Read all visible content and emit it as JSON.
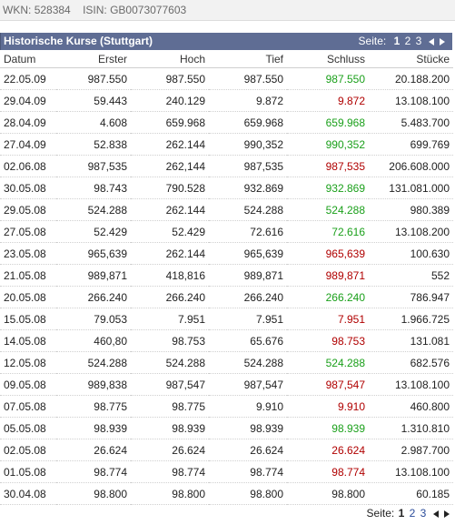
{
  "header": {
    "wkn_label": "WKN:",
    "wkn_value": "528384",
    "isin_label": "ISIN:",
    "isin_value": "GB0073077603"
  },
  "panel": {
    "title": "Historische Kurse (Stuttgart)",
    "pager_label": "Seite:",
    "pages": [
      "1",
      "2",
      "3"
    ],
    "current_page": "1"
  },
  "columns": [
    "Datum",
    "Erster",
    "Hoch",
    "Tief",
    "Schluss",
    "Stücke"
  ],
  "rows": [
    {
      "datum": "22.05.09",
      "erster": "987.550",
      "hoch": "987.550",
      "tief": "987.550",
      "schluss": "987.550",
      "trend": "up",
      "stuecke": "20.188.200"
    },
    {
      "datum": "29.04.09",
      "erster": "59.443",
      "hoch": "240.129",
      "tief": "9.872",
      "schluss": "9.872",
      "trend": "down",
      "stuecke": "13.108.100"
    },
    {
      "datum": "28.04.09",
      "erster": "4.608",
      "hoch": "659.968",
      "tief": "659.968",
      "schluss": "659.968",
      "trend": "up",
      "stuecke": "5.483.700"
    },
    {
      "datum": "27.04.09",
      "erster": "52.838",
      "hoch": "262.144",
      "tief": "990,352",
      "schluss": "990,352",
      "trend": "up",
      "stuecke": "699.769"
    },
    {
      "datum": "02.06.08",
      "erster": "987,535",
      "hoch": "262,144",
      "tief": "987,535",
      "schluss": "987,535",
      "trend": "down",
      "stuecke": "206.608.000"
    },
    {
      "datum": "30.05.08",
      "erster": "98.743",
      "hoch": "790.528",
      "tief": "932.869",
      "schluss": "932.869",
      "trend": "up",
      "stuecke": "131.081.000"
    },
    {
      "datum": "29.05.08",
      "erster": "524.288",
      "hoch": "262.144",
      "tief": "524.288",
      "schluss": "524.288",
      "trend": "up",
      "stuecke": "980.389"
    },
    {
      "datum": "27.05.08",
      "erster": "52.429",
      "hoch": "52.429",
      "tief": "72.616",
      "schluss": "72.616",
      "trend": "up",
      "stuecke": "13.108.200"
    },
    {
      "datum": "23.05.08",
      "erster": "965,639",
      "hoch": "262.144",
      "tief": "965,639",
      "schluss": "965,639",
      "trend": "down",
      "stuecke": "100.630"
    },
    {
      "datum": "21.05.08",
      "erster": "989,871",
      "hoch": "418,816",
      "tief": "989,871",
      "schluss": "989,871",
      "trend": "down",
      "stuecke": "552"
    },
    {
      "datum": "20.05.08",
      "erster": "266.240",
      "hoch": "266.240",
      "tief": "266.240",
      "schluss": "266.240",
      "trend": "up",
      "stuecke": "786.947"
    },
    {
      "datum": "15.05.08",
      "erster": "79.053",
      "hoch": "7.951",
      "tief": "7.951",
      "schluss": "7.951",
      "trend": "down",
      "stuecke": "1.966.725"
    },
    {
      "datum": "14.05.08",
      "erster": "460,80",
      "hoch": "98.753",
      "tief": "65.676",
      "schluss": "98.753",
      "trend": "down",
      "stuecke": "131.081"
    },
    {
      "datum": "12.05.08",
      "erster": "524.288",
      "hoch": "524.288",
      "tief": "524.288",
      "schluss": "524.288",
      "trend": "up",
      "stuecke": "682.576"
    },
    {
      "datum": "09.05.08",
      "erster": "989,838",
      "hoch": "987,547",
      "tief": "987,547",
      "schluss": "987,547",
      "trend": "down",
      "stuecke": "13.108.100"
    },
    {
      "datum": "07.05.08",
      "erster": "98.775",
      "hoch": "98.775",
      "tief": "9.910",
      "schluss": "9.910",
      "trend": "down",
      "stuecke": "460.800"
    },
    {
      "datum": "05.05.08",
      "erster": "98.939",
      "hoch": "98.939",
      "tief": "98.939",
      "schluss": "98.939",
      "trend": "up",
      "stuecke": "1.310.810"
    },
    {
      "datum": "02.05.08",
      "erster": "26.624",
      "hoch": "26.624",
      "tief": "26.624",
      "schluss": "26.624",
      "trend": "down",
      "stuecke": "2.987.700"
    },
    {
      "datum": "01.05.08",
      "erster": "98.774",
      "hoch": "98.774",
      "tief": "98.774",
      "schluss": "98.774",
      "trend": "down",
      "stuecke": "13.108.100"
    },
    {
      "datum": "30.04.08",
      "erster": "98.800",
      "hoch": "98.800",
      "tief": "98.800",
      "schluss": "98.800",
      "trend": "flat",
      "stuecke": "60.185"
    }
  ],
  "footer_pager": {
    "label": "Seite:",
    "pages": [
      "1",
      "2",
      "3"
    ],
    "current_page": "1"
  },
  "icons": {
    "prev": "arrow-left-icon",
    "next": "arrow-right-icon"
  },
  "colors": {
    "title_bg": "#5f6d94",
    "up": "#1ba01b",
    "down": "#b00000"
  }
}
